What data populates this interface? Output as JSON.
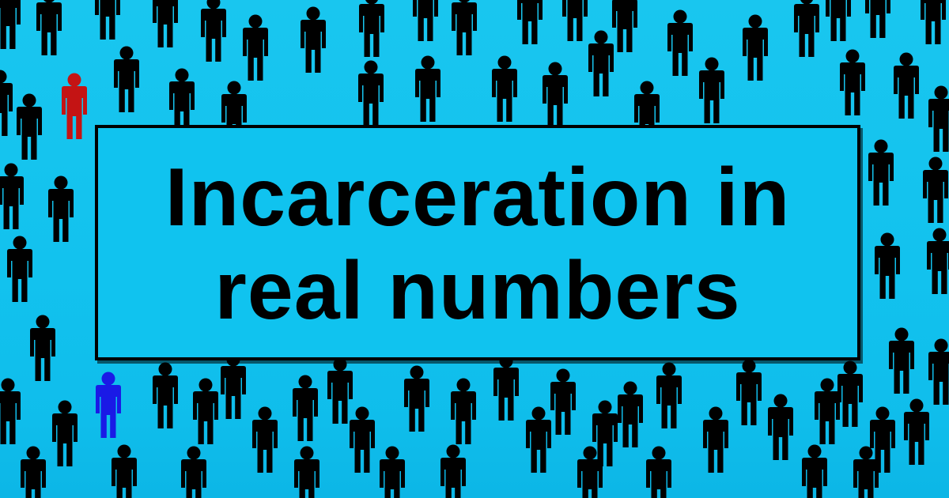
{
  "title": {
    "line1": "Incarceration in",
    "line2": "real numbers"
  },
  "colors": {
    "background": "#12c2ee",
    "figure_default": "#000000",
    "figure_highlight_red": "#c41414",
    "figure_highlight_blue": "#1a1ae6",
    "panel": "#10c3ef",
    "panel_border": "#000000"
  },
  "icons": {
    "figure": "person-icon"
  }
}
